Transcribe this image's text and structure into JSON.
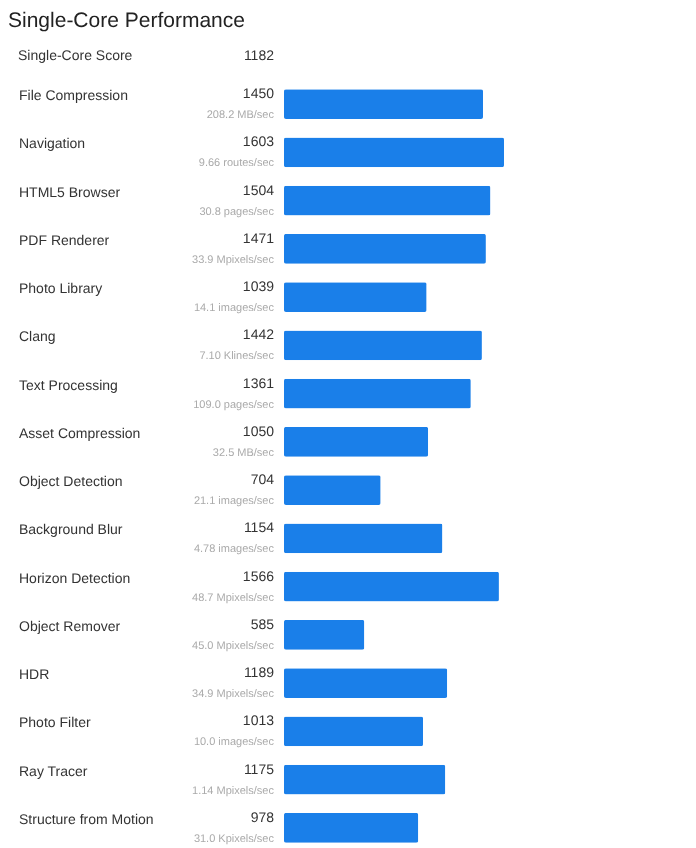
{
  "chart_data": {
    "type": "bar",
    "orientation": "horizontal",
    "title": "Single-Core Performance",
    "color": "#1a7fe9",
    "data_labels": true,
    "categories": [
      "File Compression",
      "Navigation",
      "HTML5 Browser",
      "PDF Renderer",
      "Photo Library",
      "Clang",
      "Text Processing",
      "Asset Compression",
      "Object Detection",
      "Background Blur",
      "Horizon Detection",
      "Object Remover",
      "HDR",
      "Photo Filter",
      "Ray Tracer",
      "Structure from Motion"
    ],
    "values": [
      1450,
      1603,
      1504,
      1471,
      1039,
      1442,
      1361,
      1050,
      704,
      1154,
      1566,
      585,
      1189,
      1013,
      1175,
      978
    ],
    "annotations": [
      "Single-Core Score",
      "1182",
      "208.2 MB/sec",
      "9.66 routes/sec",
      "30.8 pages/sec",
      "33.9 Mpixels/sec",
      "14.1 images/sec",
      "7.10 Klines/sec",
      "109.0 pages/sec",
      "32.5 MB/sec",
      "21.1 images/sec",
      "4.78 images/sec",
      "48.7 Mpixels/sec",
      "45.0 Mpixels/sec",
      "34.9 Mpixels/sec",
      "10.0 images/sec",
      "1.14 Mpixels/sec",
      "31.0 Kpixels/sec"
    ]
  }
}
